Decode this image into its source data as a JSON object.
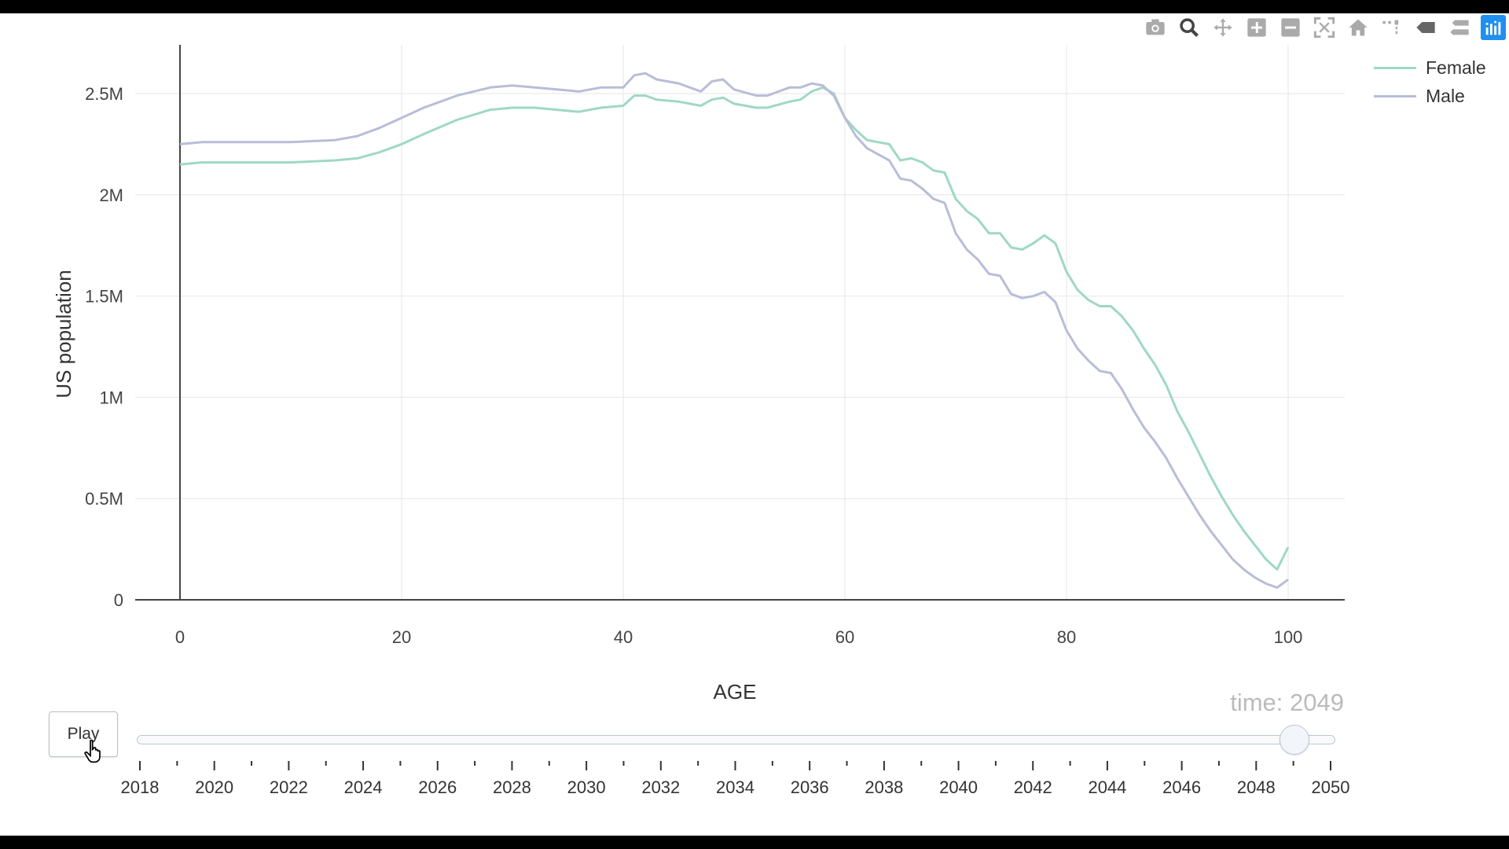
{
  "modebar": {
    "icons": [
      "camera-icon",
      "zoom-icon",
      "pan-icon",
      "zoom-in-icon",
      "zoom-out-icon",
      "autoscale-icon",
      "home-icon",
      "spike-lines-icon",
      "hover-closest-icon",
      "hover-compare-icon",
      "plotly-logo-icon"
    ]
  },
  "colors": {
    "female": "#9fd8c4",
    "male": "#b8bdd8",
    "axis": "#444444",
    "grid": "#e6e6e6"
  },
  "chart_data": {
    "type": "line",
    "title": "",
    "xlabel": "AGE",
    "ylabel": "US population",
    "xlim": [
      -5,
      105
    ],
    "ylim": [
      0,
      2.7
    ],
    "x_ticks": [
      0,
      20,
      40,
      60,
      80,
      100
    ],
    "x_tick_labels": [
      "0",
      "20",
      "40",
      "60",
      "80",
      "100"
    ],
    "y_ticks": [
      0,
      0.5,
      1,
      1.5,
      2,
      2.5
    ],
    "y_tick_labels": [
      "0",
      "0.5M",
      "1M",
      "1.5M",
      "2M",
      "2.5M"
    ],
    "grid": true,
    "legend": "top-right",
    "series": [
      {
        "name": "Female",
        "x": [
          0,
          2,
          5,
          10,
          14,
          16,
          18,
          20,
          22,
          25,
          28,
          30,
          32,
          34,
          36,
          38,
          40,
          41,
          42,
          43,
          45,
          47,
          48,
          49,
          50,
          52,
          53,
          55,
          56,
          57,
          58,
          59,
          60,
          61,
          62,
          63,
          64,
          65,
          66,
          67,
          68,
          69,
          70,
          71,
          72,
          73,
          74,
          75,
          76,
          77,
          78,
          79,
          80,
          81,
          82,
          83,
          84,
          85,
          86,
          87,
          88,
          89,
          90,
          91,
          92,
          93,
          94,
          95,
          96,
          97,
          98,
          99,
          100
        ],
        "values": [
          2.15,
          2.16,
          2.16,
          2.16,
          2.17,
          2.18,
          2.21,
          2.25,
          2.3,
          2.37,
          2.42,
          2.43,
          2.43,
          2.42,
          2.41,
          2.43,
          2.44,
          2.49,
          2.49,
          2.47,
          2.46,
          2.44,
          2.47,
          2.48,
          2.45,
          2.43,
          2.43,
          2.46,
          2.47,
          2.51,
          2.53,
          2.5,
          2.38,
          2.32,
          2.27,
          2.26,
          2.25,
          2.17,
          2.18,
          2.16,
          2.12,
          2.11,
          1.98,
          1.92,
          1.88,
          1.81,
          1.81,
          1.74,
          1.73,
          1.76,
          1.8,
          1.76,
          1.62,
          1.53,
          1.48,
          1.45,
          1.45,
          1.4,
          1.33,
          1.24,
          1.16,
          1.06,
          0.93,
          0.83,
          0.72,
          0.61,
          0.51,
          0.42,
          0.34,
          0.27,
          0.2,
          0.15,
          0.26
        ]
      },
      {
        "name": "Male",
        "x": [
          0,
          2,
          5,
          10,
          14,
          16,
          18,
          20,
          22,
          25,
          28,
          30,
          32,
          34,
          36,
          38,
          40,
          41,
          42,
          43,
          45,
          47,
          48,
          49,
          50,
          52,
          53,
          55,
          56,
          57,
          58,
          59,
          60,
          61,
          62,
          63,
          64,
          65,
          66,
          67,
          68,
          69,
          70,
          71,
          72,
          73,
          74,
          75,
          76,
          77,
          78,
          79,
          80,
          81,
          82,
          83,
          84,
          85,
          86,
          87,
          88,
          89,
          90,
          91,
          92,
          93,
          94,
          95,
          96,
          97,
          98,
          99,
          100
        ],
        "values": [
          2.25,
          2.26,
          2.26,
          2.26,
          2.27,
          2.29,
          2.33,
          2.38,
          2.43,
          2.49,
          2.53,
          2.54,
          2.53,
          2.52,
          2.51,
          2.53,
          2.53,
          2.59,
          2.6,
          2.57,
          2.55,
          2.51,
          2.56,
          2.57,
          2.52,
          2.49,
          2.49,
          2.53,
          2.53,
          2.55,
          2.54,
          2.49,
          2.38,
          2.29,
          2.23,
          2.2,
          2.17,
          2.08,
          2.07,
          2.03,
          1.98,
          1.96,
          1.81,
          1.73,
          1.68,
          1.61,
          1.6,
          1.51,
          1.49,
          1.5,
          1.52,
          1.47,
          1.33,
          1.24,
          1.18,
          1.13,
          1.12,
          1.04,
          0.94,
          0.85,
          0.78,
          0.7,
          0.6,
          0.51,
          0.42,
          0.34,
          0.27,
          0.2,
          0.15,
          0.11,
          0.08,
          0.06,
          0.1
        ]
      }
    ]
  },
  "animation": {
    "play_label": "Play",
    "time_prefix": "time: ",
    "current_value": "2049",
    "slider_min": 2018,
    "slider_max": 2050,
    "slider_value": 2049,
    "tick_labels": [
      "2018",
      "2020",
      "2022",
      "2024",
      "2026",
      "2028",
      "2030",
      "2032",
      "2034",
      "2036",
      "2038",
      "2040",
      "2042",
      "2044",
      "2046",
      "2048",
      "2050"
    ]
  }
}
